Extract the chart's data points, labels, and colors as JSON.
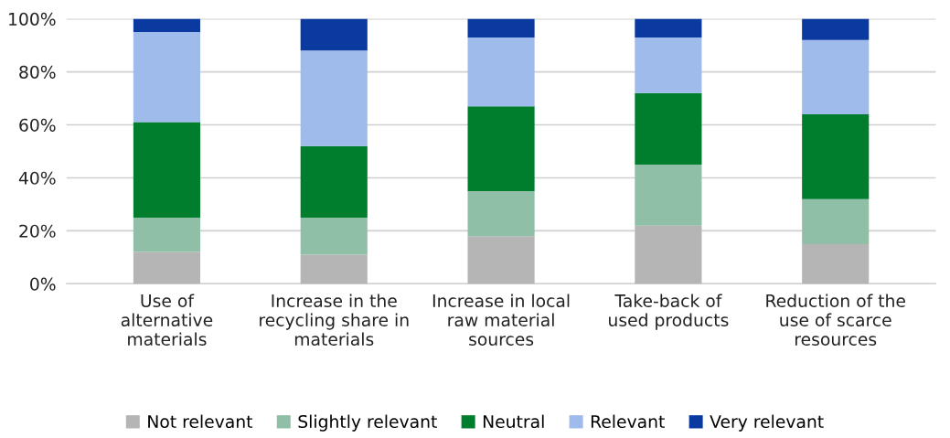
{
  "chart_data": {
    "type": "bar",
    "stacked": true,
    "categories": [
      "Use of\nalternative\nmaterials",
      "Increase in the\nrecycling share in\nmaterials",
      "Increase in local\nraw material\nsources",
      "Take-back of\nused products",
      "Reduction of the\nuse of scarce\nresources"
    ],
    "series": [
      {
        "name": "Not relevant",
        "color": "#b5b5b5",
        "values": [
          12,
          11,
          18,
          22,
          15
        ]
      },
      {
        "name": "Slightly relevant",
        "color": "#8fbfa6",
        "values": [
          13,
          14,
          17,
          23,
          17
        ]
      },
      {
        "name": "Neutral",
        "color": "#007e2e",
        "values": [
          36,
          27,
          32,
          27,
          32
        ]
      },
      {
        "name": "Relevant",
        "color": "#9fbbeb",
        "values": [
          34,
          36,
          26,
          21,
          28
        ]
      },
      {
        "name": "Very relevant",
        "color": "#0a3a9f",
        "values": [
          5,
          12,
          7,
          7,
          8
        ]
      }
    ],
    "ylim": [
      0,
      100
    ],
    "yticks": [
      {
        "value": 0,
        "label": "0%"
      },
      {
        "value": 20,
        "label": "20%"
      },
      {
        "value": 40,
        "label": "40%"
      },
      {
        "value": 60,
        "label": "60%"
      },
      {
        "value": 80,
        "label": "80%"
      },
      {
        "value": 100,
        "label": "100%"
      }
    ],
    "grid": "y",
    "legend": "bottom"
  }
}
